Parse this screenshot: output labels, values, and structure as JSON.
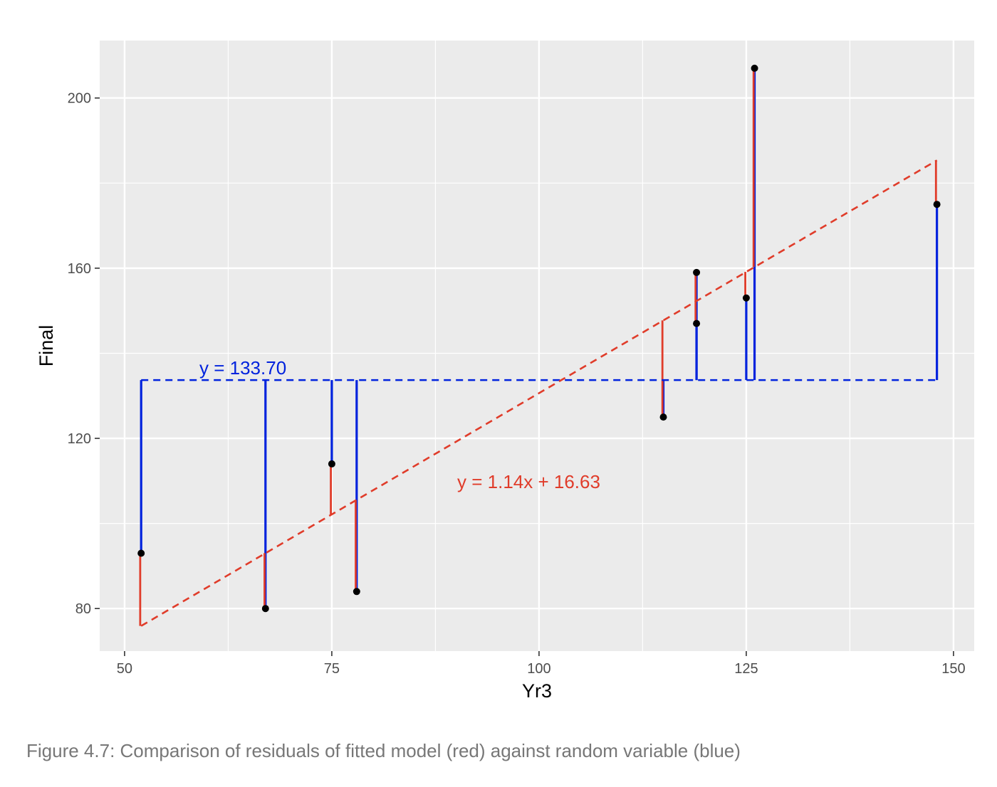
{
  "caption": "Figure 4.7: Comparison of residuals of fitted model (red) against random variable (blue)",
  "colors": {
    "panel_background": "#ebebeb",
    "grid": "#ffffff",
    "fitted_model": "#e03c2a",
    "random_variable": "#0022dd",
    "points": "#000000",
    "tick_text": "#4d4d4d"
  },
  "chart_data": {
    "type": "scatter",
    "title": "",
    "xlabel": "Yr3",
    "ylabel": "Final",
    "xlim": [
      47,
      152.5
    ],
    "ylim": [
      70,
      213.5
    ],
    "x_ticks": [
      50,
      75,
      100,
      125,
      150
    ],
    "y_ticks": [
      80,
      120,
      160,
      200
    ],
    "x_tick_labels": [
      "50",
      "75",
      "100",
      "125",
      "150"
    ],
    "y_tick_labels": [
      "80",
      "120",
      "160",
      "200"
    ],
    "grid": true,
    "points": [
      {
        "x": 52,
        "y": 93
      },
      {
        "x": 67,
        "y": 80
      },
      {
        "x": 75,
        "y": 114
      },
      {
        "x": 78,
        "y": 84
      },
      {
        "x": 115,
        "y": 125
      },
      {
        "x": 119,
        "y": 159
      },
      {
        "x": 119,
        "y": 147
      },
      {
        "x": 125,
        "y": 153
      },
      {
        "x": 126,
        "y": 207
      },
      {
        "x": 148,
        "y": 175
      }
    ],
    "fitted_line": {
      "slope": 1.14,
      "intercept": 16.63,
      "label": "y = 1.14x + 16.63"
    },
    "mean_line": {
      "y": 133.7,
      "label": "y = 133.70"
    }
  }
}
